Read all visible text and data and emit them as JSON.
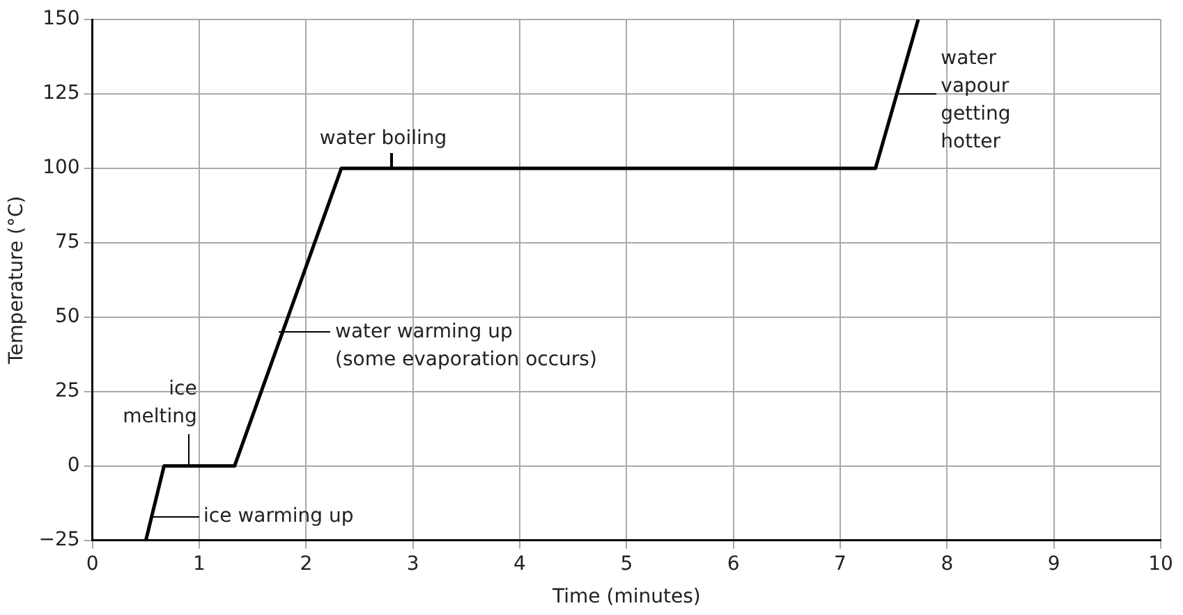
{
  "chart_data": {
    "type": "line",
    "xlabel": "Time (minutes)",
    "ylabel": "Temperature (°C)",
    "series": [
      {
        "color": "#000000",
        "x": [
          0.5,
          0.67,
          1.33,
          2.33,
          7.33,
          7.73
        ],
        "values": [
          -25,
          0,
          0,
          100,
          100,
          150
        ]
      }
    ],
    "xlim": [
      0,
      10
    ],
    "xticks": [
      0,
      1,
      2,
      3,
      4,
      5,
      6,
      7,
      8,
      9,
      10
    ],
    "ylim": [
      -25,
      150
    ],
    "yticks": [
      {
        "value": -25,
        "label": "−25"
      },
      0,
      25,
      50,
      75,
      100,
      125,
      150
    ],
    "grid": true,
    "legend": false,
    "marker": "none",
    "line_style": "solid",
    "annotations": [
      {
        "text": "water boiling",
        "x": 2.8,
        "y": 100
      },
      {
        "text": "water\nvapour\ngetting\nhotter",
        "x": 7.55,
        "y": 125
      },
      {
        "text": "water warming up\n(some evaporation occurs)",
        "x": 1.75,
        "y": 45
      },
      {
        "text": "ice\nmelting",
        "x": 0.9,
        "y": 0
      },
      {
        "text": "ice warming up",
        "x": 0.57,
        "y": -17
      }
    ]
  }
}
